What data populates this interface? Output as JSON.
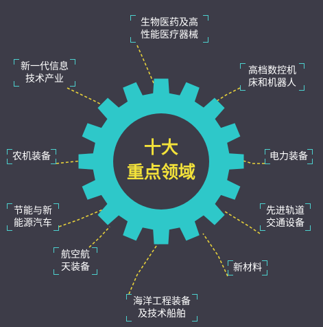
{
  "colors": {
    "background": "#3d3c48",
    "gear": "#2ec8c9",
    "gear_center": "#3d3c48",
    "title": "#f3e23a",
    "label_text": "#ffffff",
    "bracket": "#4dd2d0",
    "connector": "#e8d23b"
  },
  "center": {
    "line1": "十大",
    "line2": "重点领域"
  },
  "sectors": [
    {
      "id": "biomed",
      "line1": "生物医药及高",
      "line2": "性能医疗器械"
    },
    {
      "id": "cnc",
      "line1": "高档数控机",
      "line2": "床和机器人"
    },
    {
      "id": "power",
      "line1": "电力装备",
      "line2": ""
    },
    {
      "id": "nev",
      "line1": "先进轨道",
      "line2": "交通设备"
    },
    {
      "id": "materials",
      "line1": "新材料",
      "line2": ""
    },
    {
      "id": "ocean",
      "line1": "海洋工程装备",
      "line2": "及技术船舶"
    },
    {
      "id": "aero",
      "line1": "航空航",
      "line2": "天装备"
    },
    {
      "id": "energy",
      "line1": "节能与新",
      "line2": "能源汽车"
    },
    {
      "id": "agri",
      "line1": "农机装备",
      "line2": ""
    },
    {
      "id": "it",
      "line1": "新一代信息",
      "line2": "技术产业"
    }
  ]
}
